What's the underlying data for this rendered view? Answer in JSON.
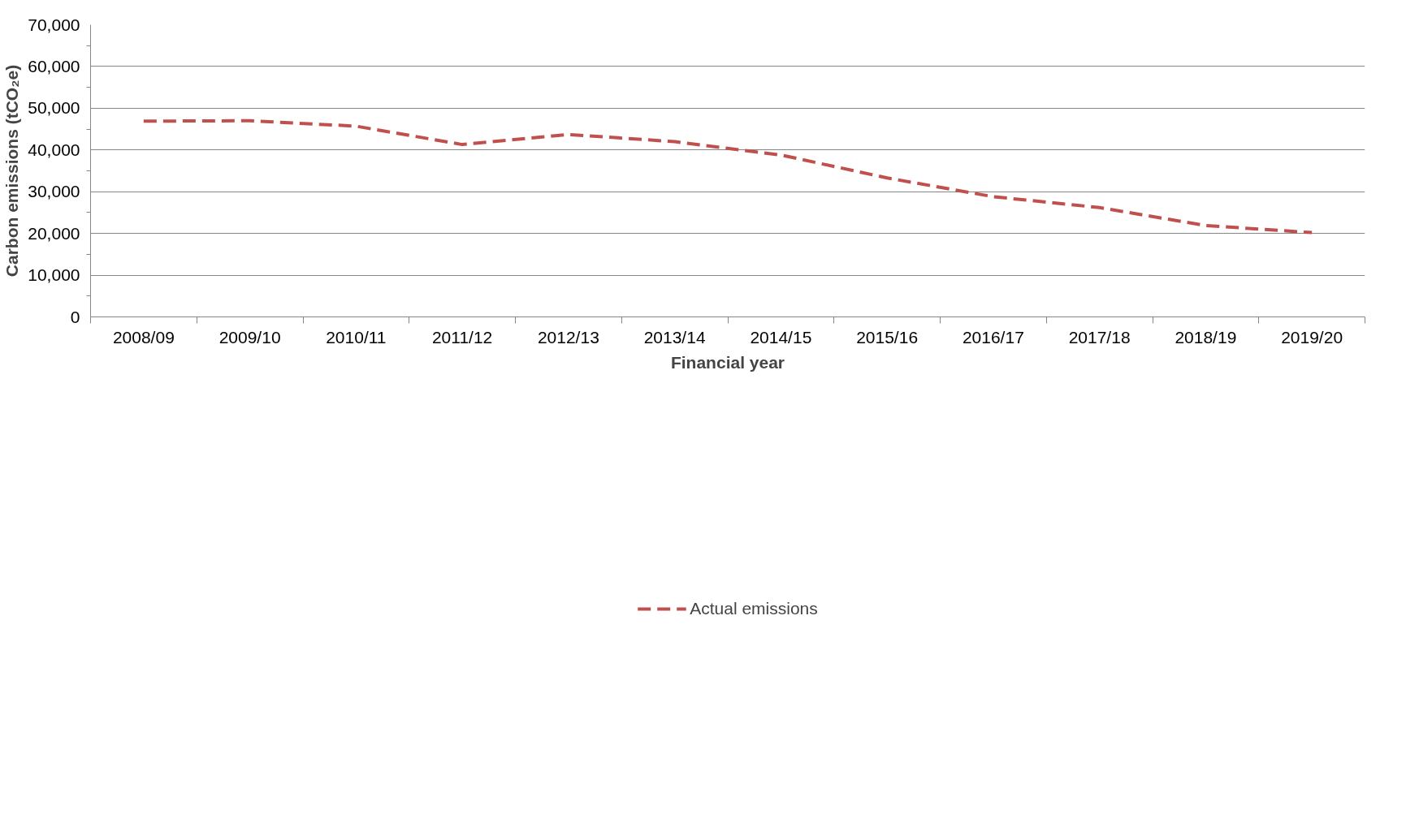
{
  "chart_data": {
    "type": "line",
    "xlabel": "Financial year",
    "ylabel": "Carbon emissions (tCO₂e)",
    "categories": [
      "2008/09",
      "2009/10",
      "2010/11",
      "2011/12",
      "2012/13",
      "2013/14",
      "2014/15",
      "2015/16",
      "2016/17",
      "2017/18",
      "2018/19",
      "2019/20"
    ],
    "series": [
      {
        "name": "Actual emissions",
        "color": "#c0504d",
        "values": [
          46900,
          47000,
          45700,
          41300,
          43700,
          42000,
          38800,
          33300,
          28800,
          26200,
          21900,
          20200
        ]
      }
    ],
    "ylim": [
      0,
      70000
    ],
    "yticks": [
      {
        "value": 0,
        "label": "0"
      },
      {
        "value": 10000,
        "label": "10,000"
      },
      {
        "value": 20000,
        "label": "20,000"
      },
      {
        "value": 30000,
        "label": "30,000"
      },
      {
        "value": 40000,
        "label": "40,000"
      },
      {
        "value": 50000,
        "label": "50,000"
      },
      {
        "value": 60000,
        "label": "60,000"
      },
      {
        "value": 70000,
        "label": "70,000"
      }
    ],
    "grid": "y",
    "legend": "bottom",
    "line_style": "dashed",
    "marker": "none"
  }
}
